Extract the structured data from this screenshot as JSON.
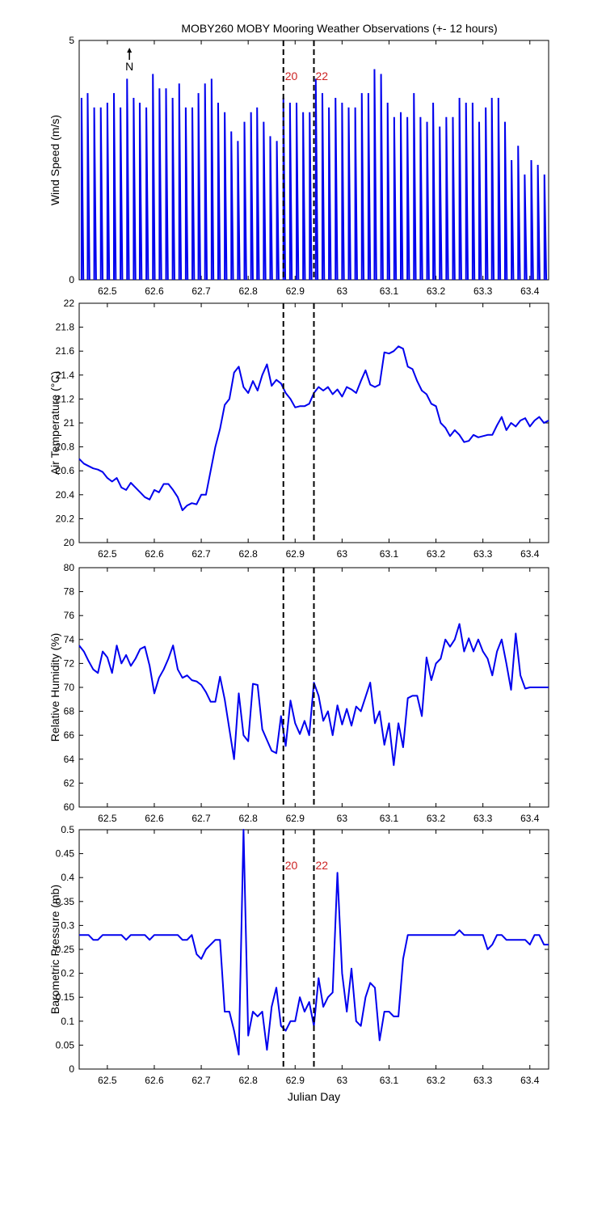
{
  "title": "MOBY260 MOBY Mooring Weather Observations (+- 12 hours)",
  "colors": {
    "line": "#0000ee",
    "annotation": "#cc2222",
    "axis": "#000000"
  },
  "chart_data": [
    {
      "type": "line",
      "id": "wind",
      "title": "MOBY260 MOBY Mooring Weather Observations (+- 12 hours)",
      "xlabel": "",
      "ylabel": "Wind Speed (m/s)",
      "xlim": [
        62.44,
        63.44
      ],
      "ylim": [
        0,
        5
      ],
      "x_ticks": [
        62.5,
        62.6,
        62.7,
        62.8,
        62.9,
        63,
        63.1,
        63.2,
        63.3,
        63.4
      ],
      "y_ticks": [
        0,
        5
      ],
      "vlines": [
        62.875,
        62.94
      ],
      "vline_labels": [
        "20",
        "22"
      ],
      "north_label": "N",
      "north_x": 62.547,
      "series": [
        {
          "name": "Wind Speed",
          "x": [
            62.445,
            62.458,
            62.472,
            62.486,
            62.5,
            62.514,
            62.528,
            62.542,
            62.556,
            62.569,
            62.583,
            62.597,
            62.611,
            62.625,
            62.639,
            62.653,
            62.667,
            62.681,
            62.694,
            62.708,
            62.722,
            62.736,
            62.75,
            62.764,
            62.778,
            62.792,
            62.806,
            62.819,
            62.833,
            62.847,
            62.861,
            62.875,
            62.889,
            62.903,
            62.917,
            62.931,
            62.944,
            62.958,
            62.972,
            62.986,
            63.0,
            63.014,
            63.028,
            63.042,
            63.056,
            63.069,
            63.083,
            63.097,
            63.111,
            63.125,
            63.139,
            63.153,
            63.167,
            63.181,
            63.194,
            63.208,
            63.222,
            63.236,
            63.25,
            63.264,
            63.278,
            63.292,
            63.306,
            63.319,
            63.333,
            63.347,
            63.361,
            63.375,
            63.389,
            63.403,
            63.417,
            63.431
          ],
          "values": [
            3.8,
            3.9,
            3.6,
            3.6,
            3.7,
            3.9,
            3.6,
            4.2,
            3.8,
            3.7,
            3.6,
            4.3,
            4.0,
            4.0,
            3.8,
            4.1,
            3.6,
            3.6,
            3.9,
            4.1,
            4.2,
            3.7,
            3.5,
            3.1,
            2.9,
            3.3,
            3.5,
            3.6,
            3.3,
            3.0,
            2.9,
            3.8,
            3.7,
            3.7,
            3.5,
            3.5,
            4.2,
            3.9,
            3.6,
            3.8,
            3.7,
            3.6,
            3.6,
            3.9,
            3.9,
            4.4,
            4.3,
            3.7,
            3.4,
            3.5,
            3.4,
            3.9,
            3.4,
            3.3,
            3.7,
            3.2,
            3.4,
            3.4,
            3.8,
            3.7,
            3.7,
            3.3,
            3.6,
            3.8,
            3.8,
            3.3,
            2.5,
            2.8,
            2.2,
            2.5,
            2.4,
            2.2
          ]
        }
      ]
    },
    {
      "type": "line",
      "id": "air",
      "xlabel": "",
      "ylabel": "Air Temperature (°C)",
      "xlim": [
        62.44,
        63.44
      ],
      "ylim": [
        20,
        22
      ],
      "x_ticks": [
        62.5,
        62.6,
        62.7,
        62.8,
        62.9,
        63,
        63.1,
        63.2,
        63.3,
        63.4
      ],
      "y_ticks": [
        20,
        20.2,
        20.4,
        20.6,
        20.8,
        21,
        21.2,
        21.4,
        21.6,
        21.8,
        22
      ],
      "vlines": [
        62.875,
        62.94
      ],
      "series": [
        {
          "name": "Air Temperature",
          "x": [
            62.44,
            62.45,
            62.46,
            62.47,
            62.48,
            62.49,
            62.5,
            62.51,
            62.52,
            62.53,
            62.54,
            62.55,
            62.56,
            62.57,
            62.58,
            62.59,
            62.6,
            62.61,
            62.62,
            62.63,
            62.64,
            62.65,
            62.66,
            62.67,
            62.68,
            62.69,
            62.7,
            62.71,
            62.72,
            62.73,
            62.74,
            62.75,
            62.76,
            62.77,
            62.78,
            62.79,
            62.8,
            62.81,
            62.82,
            62.83,
            62.84,
            62.85,
            62.86,
            62.87,
            62.88,
            62.89,
            62.9,
            62.91,
            62.92,
            62.93,
            62.94,
            62.95,
            62.96,
            62.97,
            62.98,
            62.99,
            63.0,
            63.01,
            63.02,
            63.03,
            63.04,
            63.05,
            63.06,
            63.07,
            63.08,
            63.09,
            63.1,
            63.11,
            63.12,
            63.13,
            63.14,
            63.15,
            63.16,
            63.17,
            63.18,
            63.19,
            63.2,
            63.21,
            63.22,
            63.23,
            63.24,
            63.25,
            63.26,
            63.27,
            63.28,
            63.29,
            63.3,
            63.31,
            63.32,
            63.33,
            63.34,
            63.35,
            63.36,
            63.37,
            63.38,
            63.39,
            63.4,
            63.41,
            63.42,
            63.43,
            63.44
          ],
          "values": [
            20.7,
            20.66,
            20.64,
            20.62,
            20.61,
            20.59,
            20.54,
            20.51,
            20.54,
            20.46,
            20.44,
            20.5,
            20.46,
            20.42,
            20.38,
            20.36,
            20.44,
            20.42,
            20.49,
            20.49,
            20.44,
            20.38,
            20.27,
            20.31,
            20.33,
            20.32,
            20.4,
            20.4,
            20.6,
            20.8,
            20.95,
            21.15,
            21.2,
            21.42,
            21.47,
            21.3,
            21.25,
            21.35,
            21.27,
            21.4,
            21.49,
            21.31,
            21.36,
            21.33,
            21.25,
            21.2,
            21.13,
            21.14,
            21.14,
            21.16,
            21.25,
            21.3,
            21.27,
            21.3,
            21.24,
            21.28,
            21.22,
            21.3,
            21.28,
            21.25,
            21.35,
            21.44,
            21.32,
            21.3,
            21.32,
            21.59,
            21.58,
            21.6,
            21.64,
            21.62,
            21.47,
            21.45,
            21.35,
            21.27,
            21.24,
            21.16,
            21.14,
            21.0,
            20.96,
            20.89,
            20.94,
            20.9,
            20.84,
            20.85,
            20.9,
            20.88,
            20.89,
            20.9,
            20.9,
            20.98,
            21.05,
            20.94,
            21.0,
            20.97,
            21.02,
            21.04,
            20.97,
            21.02,
            21.05,
            21.0,
            21.02
          ]
        }
      ]
    },
    {
      "type": "line",
      "id": "rh",
      "xlabel": "",
      "ylabel": "Relative Humidity (%)",
      "xlim": [
        62.44,
        63.44
      ],
      "ylim": [
        60,
        80
      ],
      "x_ticks": [
        62.5,
        62.6,
        62.7,
        62.8,
        62.9,
        63,
        63.1,
        63.2,
        63.3,
        63.4
      ],
      "y_ticks": [
        60,
        62,
        64,
        66,
        68,
        70,
        72,
        74,
        76,
        78,
        80
      ],
      "vlines": [
        62.875,
        62.94
      ],
      "series": [
        {
          "name": "Relative Humidity",
          "x": [
            62.44,
            62.45,
            62.46,
            62.47,
            62.48,
            62.49,
            62.5,
            62.51,
            62.52,
            62.53,
            62.54,
            62.55,
            62.56,
            62.57,
            62.58,
            62.59,
            62.6,
            62.61,
            62.62,
            62.63,
            62.64,
            62.65,
            62.66,
            62.67,
            62.68,
            62.69,
            62.7,
            62.71,
            62.72,
            62.73,
            62.74,
            62.75,
            62.76,
            62.77,
            62.78,
            62.79,
            62.8,
            62.81,
            62.82,
            62.83,
            62.84,
            62.85,
            62.86,
            62.87,
            62.88,
            62.89,
            62.9,
            62.91,
            62.92,
            62.93,
            62.94,
            62.95,
            62.96,
            62.97,
            62.98,
            62.99,
            63.0,
            63.01,
            63.02,
            63.03,
            63.04,
            63.05,
            63.06,
            63.07,
            63.08,
            63.09,
            63.1,
            63.11,
            63.12,
            63.13,
            63.14,
            63.15,
            63.16,
            63.17,
            63.18,
            63.19,
            63.2,
            63.21,
            63.22,
            63.23,
            63.24,
            63.25,
            63.26,
            63.27,
            63.28,
            63.29,
            63.3,
            63.31,
            63.32,
            63.33,
            63.34,
            63.35,
            63.36,
            63.37,
            63.38,
            63.39,
            63.4,
            63.41,
            63.42,
            63.43,
            63.44
          ],
          "values": [
            73.5,
            73.0,
            72.2,
            71.5,
            71.2,
            73.0,
            72.5,
            71.2,
            73.5,
            72.0,
            72.7,
            71.8,
            72.4,
            73.2,
            73.4,
            71.8,
            69.5,
            70.8,
            71.5,
            72.4,
            73.5,
            71.5,
            70.8,
            71.0,
            70.6,
            70.5,
            70.2,
            69.6,
            68.8,
            68.8,
            70.9,
            69.0,
            66.5,
            64.0,
            69.5,
            66.0,
            65.5,
            70.3,
            70.2,
            66.5,
            65.6,
            64.7,
            64.5,
            67.6,
            65.1,
            68.9,
            67.0,
            66.1,
            67.2,
            66.0,
            70.4,
            69.3,
            67.2,
            68.0,
            66.0,
            68.5,
            66.9,
            68.2,
            66.8,
            68.4,
            68.0,
            69.2,
            70.4,
            67.0,
            68.0,
            65.2,
            67.0,
            63.5,
            67.0,
            65.0,
            69.1,
            69.3,
            69.3,
            67.6,
            72.5,
            70.6,
            72.0,
            72.4,
            74.0,
            73.4,
            74.0,
            75.3,
            73.0,
            74.1,
            73.0,
            74.0,
            73.0,
            72.4,
            71.0,
            73.0,
            74.0,
            72.0,
            69.8,
            74.5,
            71.0,
            69.9,
            70.0,
            70.0,
            70.0,
            70.0,
            70.0
          ]
        }
      ]
    },
    {
      "type": "line",
      "id": "baro",
      "xlabel": "Julian Day",
      "ylabel": "Barometric Pressure (mb)",
      "xlim": [
        62.44,
        63.44
      ],
      "ylim": [
        0,
        0.5
      ],
      "x_ticks": [
        62.5,
        62.6,
        62.7,
        62.8,
        62.9,
        63,
        63.1,
        63.2,
        63.3,
        63.4
      ],
      "y_ticks": [
        0,
        0.05,
        0.1,
        0.15,
        0.2,
        0.25,
        0.3,
        0.35,
        0.4,
        0.45,
        0.5
      ],
      "vlines": [
        62.875,
        62.94
      ],
      "vline_labels": [
        "20",
        "22"
      ],
      "series": [
        {
          "name": "Barometric Pressure",
          "x": [
            62.44,
            62.45,
            62.46,
            62.47,
            62.48,
            62.49,
            62.5,
            62.51,
            62.52,
            62.53,
            62.54,
            62.55,
            62.56,
            62.57,
            62.58,
            62.59,
            62.6,
            62.61,
            62.62,
            62.63,
            62.64,
            62.65,
            62.66,
            62.67,
            62.68,
            62.69,
            62.7,
            62.71,
            62.72,
            62.73,
            62.74,
            62.75,
            62.76,
            62.77,
            62.78,
            62.79,
            62.8,
            62.81,
            62.82,
            62.83,
            62.84,
            62.85,
            62.86,
            62.87,
            62.88,
            62.89,
            62.9,
            62.91,
            62.92,
            62.93,
            62.94,
            62.95,
            62.96,
            62.97,
            62.98,
            62.99,
            63.0,
            63.01,
            63.02,
            63.03,
            63.04,
            63.05,
            63.06,
            63.07,
            63.08,
            63.09,
            63.1,
            63.11,
            63.12,
            63.13,
            63.14,
            63.15,
            63.16,
            63.17,
            63.18,
            63.19,
            63.2,
            63.21,
            63.22,
            63.23,
            63.24,
            63.25,
            63.26,
            63.27,
            63.28,
            63.29,
            63.3,
            63.31,
            63.32,
            63.33,
            63.34,
            63.35,
            63.36,
            63.37,
            63.38,
            63.39,
            63.4,
            63.41,
            63.42,
            63.43,
            63.44
          ],
          "values": [
            0.28,
            0.28,
            0.28,
            0.27,
            0.27,
            0.28,
            0.28,
            0.28,
            0.28,
            0.28,
            0.27,
            0.28,
            0.28,
            0.28,
            0.28,
            0.27,
            0.28,
            0.28,
            0.28,
            0.28,
            0.28,
            0.28,
            0.27,
            0.27,
            0.28,
            0.24,
            0.23,
            0.25,
            0.26,
            0.27,
            0.27,
            0.12,
            0.12,
            0.08,
            0.03,
            0.5,
            0.07,
            0.12,
            0.11,
            0.12,
            0.04,
            0.13,
            0.17,
            0.09,
            0.08,
            0.1,
            0.1,
            0.15,
            0.12,
            0.14,
            0.09,
            0.19,
            0.13,
            0.15,
            0.16,
            0.41,
            0.2,
            0.12,
            0.21,
            0.1,
            0.09,
            0.15,
            0.18,
            0.17,
            0.06,
            0.12,
            0.12,
            0.11,
            0.11,
            0.23,
            0.28,
            0.28,
            0.28,
            0.28,
            0.28,
            0.28,
            0.28,
            0.28,
            0.28,
            0.28,
            0.28,
            0.29,
            0.28,
            0.28,
            0.28,
            0.28,
            0.28,
            0.25,
            0.26,
            0.28,
            0.28,
            0.27,
            0.27,
            0.27,
            0.27,
            0.27,
            0.26,
            0.28,
            0.28,
            0.26,
            0.26
          ]
        }
      ]
    }
  ]
}
